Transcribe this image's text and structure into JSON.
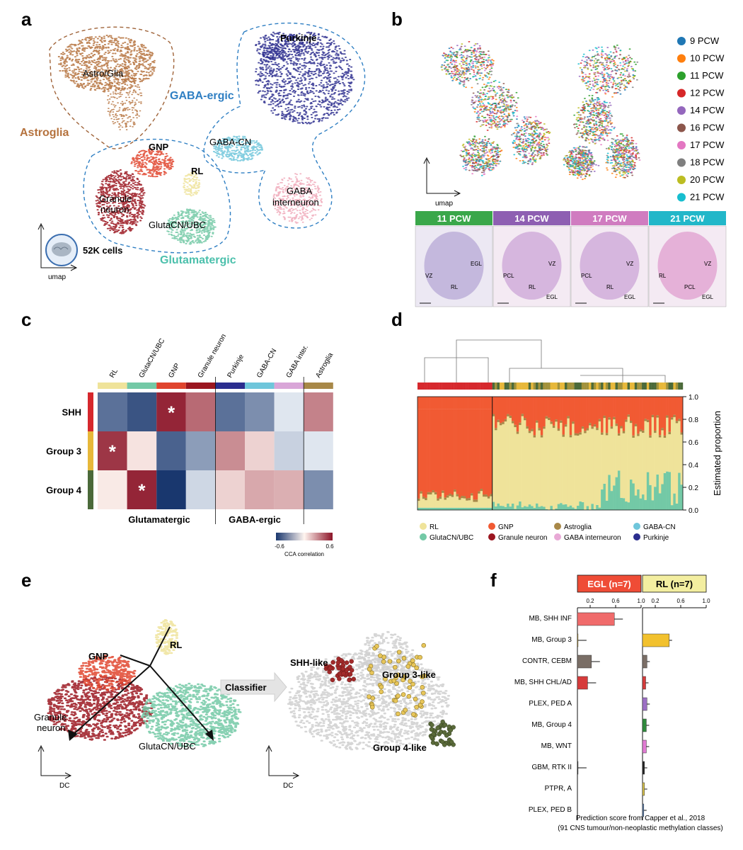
{
  "colors": {
    "astro": "#b5723d",
    "purkinje": "#2b2d8e",
    "gabacn": "#6fc6db",
    "gabaint": "#f0a8b8",
    "gnp": "#e0452e",
    "granule": "#9b1620",
    "rl": "#efe39a",
    "glutacn": "#73c9a6",
    "dash_blue": "#2f7fc3",
    "dash_brown": "#a0643a",
    "grey": "#cfcfcf"
  },
  "panel_a": {
    "letter": "a",
    "cluster_labels": [
      "Astro/Glia",
      "Purkinje",
      "GABA-CN",
      "GABA",
      "interneuron",
      "GNP",
      "RL",
      "Granule",
      "neuron",
      "GlutaCN/UBC"
    ],
    "group_labels": {
      "astroglia": "Astroglia",
      "gaba": "GABA-ergic",
      "glut": "Glutamatergic"
    },
    "cells": "52K cells",
    "axis": "umap"
  },
  "panel_b": {
    "letter": "b",
    "axis": "umap",
    "legend": [
      {
        "label": "9 PCW",
        "color": "#1f77b4"
      },
      {
        "label": "10 PCW",
        "color": "#ff7f0e"
      },
      {
        "label": "11 PCW",
        "color": "#2ca02c"
      },
      {
        "label": "12 PCW",
        "color": "#d62728"
      },
      {
        "label": "14 PCW",
        "color": "#9467bd"
      },
      {
        "label": "16 PCW",
        "color": "#8c564b"
      },
      {
        "label": "17 PCW",
        "color": "#e377c2"
      },
      {
        "label": "18 PCW",
        "color": "#7f7f7f"
      },
      {
        "label": "20 PCW",
        "color": "#bcbd22"
      },
      {
        "label": "21 PCW",
        "color": "#17becf"
      }
    ],
    "histology": [
      {
        "title": "11 PCW",
        "color": "#3aa74a",
        "labels": [
          "EGL",
          "VZ",
          "RL"
        ]
      },
      {
        "title": "14 PCW",
        "color": "#8e5fb2",
        "labels": [
          "VZ",
          "PCL",
          "RL",
          "EGL"
        ]
      },
      {
        "title": "17 PCW",
        "color": "#d07cc0",
        "labels": [
          "VZ",
          "PCL",
          "RL",
          "EGL"
        ]
      },
      {
        "title": "21 PCW",
        "color": "#22b7c9",
        "labels": [
          "VZ",
          "RL",
          "PCL",
          "EGL"
        ]
      }
    ]
  },
  "panel_c": {
    "letter": "c",
    "columns": [
      "RL",
      "GlutaCN/UBC",
      "GNP",
      "Granule neuron",
      "Purkinje",
      "GABA-CN",
      "GABA inter.",
      "Astroglia"
    ],
    "rows": [
      "SHH",
      "Group 3",
      "Group 4"
    ],
    "values": [
      [
        -0.45,
        -0.55,
        0.6,
        0.4,
        -0.45,
        -0.35,
        -0.05,
        0.33
      ],
      [
        0.55,
        0.05,
        -0.5,
        -0.3,
        0.3,
        0.1,
        -0.12,
        -0.05
      ],
      [
        0.03,
        0.6,
        -0.65,
        -0.1,
        0.1,
        0.22,
        0.2,
        -0.35
      ]
    ],
    "star": "*",
    "group_labels": [
      "Glutamatergic",
      "GABA-ergic"
    ],
    "colorbar": {
      "min": "-0.6",
      "max": "0.6",
      "title": "CCA correlation"
    }
  },
  "panel_d": {
    "letter": "d",
    "y_ticks": [
      "1.0",
      "0.8",
      "0.6",
      "0.4",
      "0.2",
      "0.0"
    ],
    "ylabel": "Estimated proportion",
    "legend": [
      {
        "label": "RL",
        "color": "#efe39a"
      },
      {
        "label": "GNP",
        "color": "#f15a33"
      },
      {
        "label": "Astroglia",
        "color": "#a88848"
      },
      {
        "label": "GABA-CN",
        "color": "#6fc6db"
      },
      {
        "label": "GlutaCN/UBC",
        "color": "#73c9a6"
      },
      {
        "label": "Granule neuron",
        "color": "#9b1620"
      },
      {
        "label": "GABA interneuron",
        "color": "#e8a9d6"
      },
      {
        "label": "Purkinje",
        "color": "#2b2d8e"
      }
    ]
  },
  "panel_e": {
    "letter": "e",
    "left_labels": [
      "GNP",
      "RL",
      "Granule",
      "neuron",
      "GlutaCN/UBC"
    ],
    "classifier": "Classifier",
    "right_labels": [
      "SHH-like",
      "Group 3-like",
      "Group 4-like"
    ],
    "axis": "DC"
  },
  "panel_f": {
    "letter": "f",
    "egl_title": "EGL (n=7)",
    "rl_title": "RL (n=7)",
    "ticks": [
      "0.2",
      "0.6",
      "1.0"
    ],
    "categories": [
      "MB, SHH INF",
      "MB, Group 3",
      "CONTR, CEBM",
      "MB, SHH CHL/AD",
      "PLEX, PED A",
      "MB, Group 4",
      "MB, WNT",
      "GBM, RTK II",
      "PTPR, A",
      "PLEX, PED B"
    ],
    "egl_values": [
      0.58,
      0.01,
      0.22,
      0.16,
      0,
      0,
      0,
      0.01,
      0,
      0
    ],
    "rl_values": [
      0,
      0.42,
      0.07,
      0.05,
      0.07,
      0.06,
      0.06,
      0.03,
      0.03,
      0.02
    ],
    "bar_colors": [
      "#f06b6b",
      "#f2c12e",
      "#7a6e66",
      "#d63b3b",
      "#9c6fc4",
      "#2f8a3c",
      "#e07bd3",
      "#222222",
      "#d9c34a",
      "#5a7fb0"
    ],
    "caption1": "Prediction score from Capper et al., 2018",
    "caption2": "(91 CNS tumour/non-neoplastic methylation classes)"
  }
}
